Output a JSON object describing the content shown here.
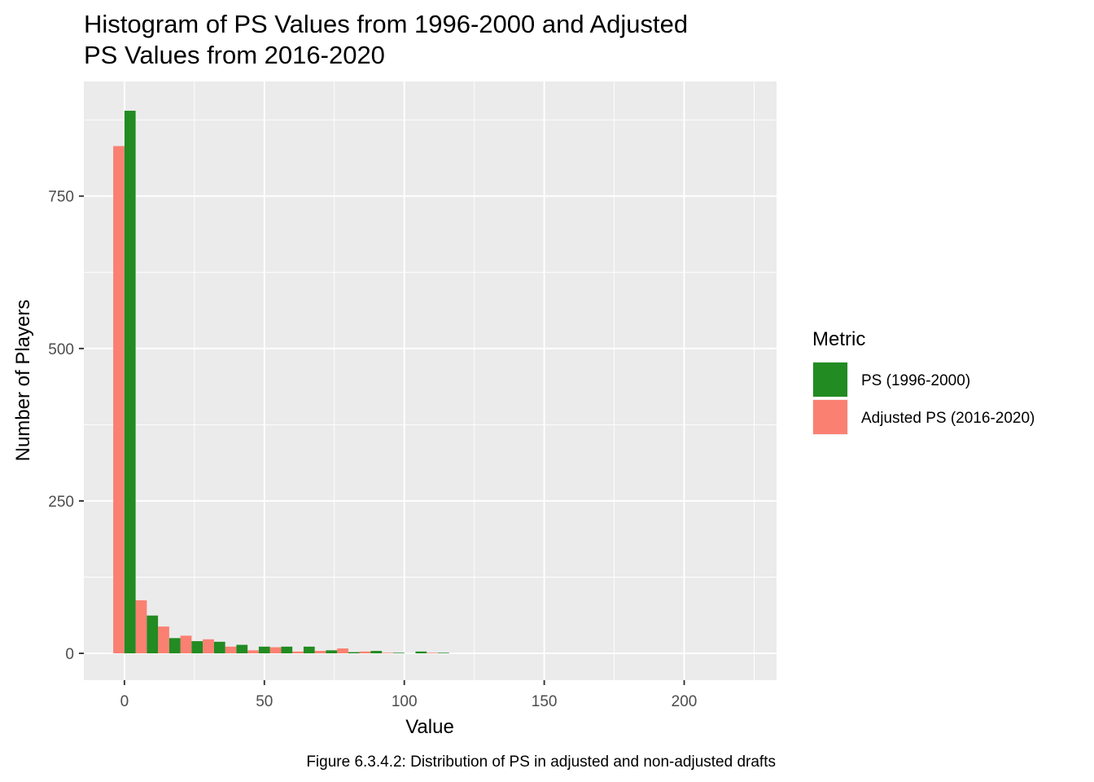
{
  "chart_data": {
    "type": "bar",
    "title_lines": [
      "Histogram of PS Values from 1996-2000 and Adjusted",
      "PS Values from 2016-2020"
    ],
    "xlabel": "Value",
    "ylabel": "Number of Players",
    "caption": "Figure 6.3.4.2: Distribution of PS in adjusted and non-adjusted drafts",
    "xlim": [
      -14.5,
      233
    ],
    "ylim": [
      -44,
      938
    ],
    "x_ticks": [
      0,
      50,
      100,
      150,
      200
    ],
    "x_tick_labels": [
      "0",
      "50",
      "100",
      "150",
      "200"
    ],
    "y_ticks": [
      0,
      250,
      500,
      750
    ],
    "y_tick_labels": [
      "0",
      "250",
      "500",
      "750"
    ],
    "bin_width": 8,
    "legend_title": "Metric",
    "legend_position": "right",
    "grid": true,
    "bins": [
      0,
      8,
      16,
      24,
      32,
      40,
      48,
      56,
      64,
      72,
      80,
      88,
      96,
      104,
      112
    ],
    "series": [
      {
        "name": "PS (1996-2000)",
        "color": "#228B22",
        "values": [
          890,
          62,
          25,
          20,
          19,
          14,
          11,
          11,
          11,
          5,
          2,
          4,
          1,
          3,
          1
        ]
      },
      {
        "name": "Adjusted PS (2016-2020)",
        "color": "#FA8072",
        "values": [
          832,
          87,
          44,
          29,
          23,
          11,
          5,
          10,
          3,
          4,
          8,
          3,
          1,
          0,
          1
        ]
      }
    ]
  }
}
